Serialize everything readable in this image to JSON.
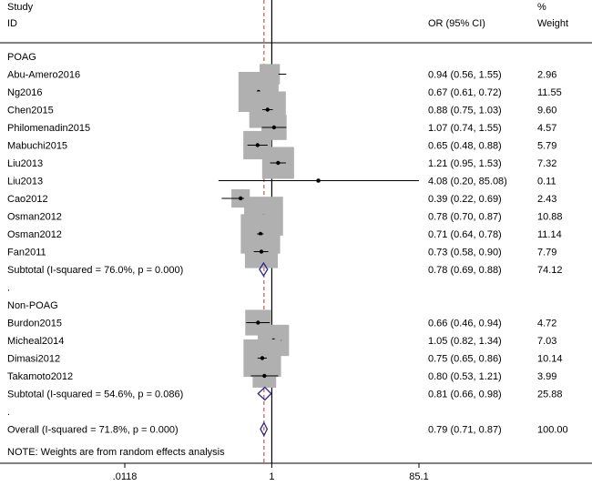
{
  "header": {
    "study_line1": "Study",
    "study_line2": "ID",
    "or_label": "OR (95% CI)",
    "weight_line1": "%",
    "weight_line2": "Weight"
  },
  "note": "NOTE: Weights are from random effects analysis",
  "chart_data": {
    "type": "forest",
    "xscale": "log",
    "xlim": [
      0.0118,
      85.1
    ],
    "xticks": [
      ".0118",
      "1",
      "85.1"
    ],
    "xtick_values": [
      0.0118,
      1,
      85.1
    ],
    "null_line": 1,
    "overall_line": 0.79,
    "colors": {
      "box": "#b0b0b0",
      "diamond": "#2b2b8c",
      "ref_line": "#c0392b"
    },
    "rows": [
      {
        "kind": "group",
        "label": "POAG"
      },
      {
        "kind": "study",
        "label": "Abu-Amero2016",
        "or": 0.94,
        "lo": 0.56,
        "hi": 1.55,
        "ci_text": "0.94 (0.56, 1.55)",
        "weight": 2.96,
        "weight_text": "2.96"
      },
      {
        "kind": "study",
        "label": "Ng2016",
        "or": 0.67,
        "lo": 0.61,
        "hi": 0.72,
        "ci_text": "0.67 (0.61, 0.72)",
        "weight": 11.55,
        "weight_text": "11.55"
      },
      {
        "kind": "study",
        "label": "Chen2015",
        "or": 0.88,
        "lo": 0.75,
        "hi": 1.03,
        "ci_text": "0.88 (0.75, 1.03)",
        "weight": 9.6,
        "weight_text": "9.60"
      },
      {
        "kind": "study",
        "label": "Philomenadin2015",
        "or": 1.07,
        "lo": 0.74,
        "hi": 1.55,
        "ci_text": "1.07 (0.74, 1.55)",
        "weight": 4.57,
        "weight_text": "4.57"
      },
      {
        "kind": "study",
        "label": "Mabuchi2015",
        "or": 0.65,
        "lo": 0.48,
        "hi": 0.88,
        "ci_text": "0.65 (0.48, 0.88)",
        "weight": 5.79,
        "weight_text": "5.79"
      },
      {
        "kind": "study",
        "label": "Liu2013",
        "or": 1.21,
        "lo": 0.95,
        "hi": 1.53,
        "ci_text": "1.21 (0.95, 1.53)",
        "weight": 7.32,
        "weight_text": "7.32"
      },
      {
        "kind": "study",
        "label": "Liu2013",
        "or": 4.08,
        "lo": 0.2,
        "hi": 85.08,
        "ci_text": "4.08 (0.20, 85.08)",
        "weight": 0.11,
        "weight_text": "0.11"
      },
      {
        "kind": "study",
        "label": "Cao2012",
        "or": 0.39,
        "lo": 0.22,
        "hi": 0.69,
        "ci_text": "0.39 (0.22, 0.69)",
        "weight": 2.43,
        "weight_text": "2.43"
      },
      {
        "kind": "study",
        "label": "Osman2012",
        "or": 0.78,
        "lo": 0.7,
        "hi": 0.87,
        "ci_text": "0.78 (0.70, 0.87)",
        "weight": 10.88,
        "weight_text": "10.88"
      },
      {
        "kind": "study",
        "label": "Osman2012",
        "or": 0.71,
        "lo": 0.64,
        "hi": 0.78,
        "ci_text": "0.71 (0.64, 0.78)",
        "weight": 11.14,
        "weight_text": "11.14"
      },
      {
        "kind": "study",
        "label": "Fan2011",
        "or": 0.73,
        "lo": 0.58,
        "hi": 0.9,
        "ci_text": "0.73 (0.58, 0.90)",
        "weight": 7.79,
        "weight_text": "7.79"
      },
      {
        "kind": "subtotal",
        "label": "Subtotal  (I-squared = 76.0%, p = 0.000)",
        "or": 0.78,
        "lo": 0.69,
        "hi": 0.88,
        "ci_text": "0.78 (0.69, 0.88)",
        "weight": 74.12,
        "weight_text": "74.12"
      },
      {
        "kind": "dot",
        "label": "."
      },
      {
        "kind": "group",
        "label": "Non-POAG"
      },
      {
        "kind": "study",
        "label": "Burdon2015",
        "or": 0.66,
        "lo": 0.46,
        "hi": 0.94,
        "ci_text": "0.66 (0.46, 0.94)",
        "weight": 4.72,
        "weight_text": "4.72"
      },
      {
        "kind": "study",
        "label": "Micheal2014",
        "or": 1.05,
        "lo": 0.82,
        "hi": 1.34,
        "ci_text": "1.05 (0.82, 1.34)",
        "weight": 7.03,
        "weight_text": "7.03"
      },
      {
        "kind": "study",
        "label": "Dimasi2012",
        "or": 0.75,
        "lo": 0.65,
        "hi": 0.86,
        "ci_text": "0.75 (0.65, 0.86)",
        "weight": 10.14,
        "weight_text": "10.14"
      },
      {
        "kind": "study",
        "label": "Takamoto2012",
        "or": 0.8,
        "lo": 0.53,
        "hi": 1.21,
        "ci_text": "0.80 (0.53, 1.21)",
        "weight": 3.99,
        "weight_text": "3.99"
      },
      {
        "kind": "subtotal",
        "label": "Subtotal  (I-squared = 54.6%, p = 0.086)",
        "or": 0.81,
        "lo": 0.66,
        "hi": 0.98,
        "ci_text": "0.81 (0.66, 0.98)",
        "weight": 25.88,
        "weight_text": "25.88"
      },
      {
        "kind": "dot",
        "label": "."
      },
      {
        "kind": "overall",
        "label": "Overall  (I-squared = 71.8%, p = 0.000)",
        "or": 0.79,
        "lo": 0.71,
        "hi": 0.87,
        "ci_text": "0.79 (0.71, 0.87)",
        "weight": 100.0,
        "weight_text": "100.00"
      }
    ]
  }
}
